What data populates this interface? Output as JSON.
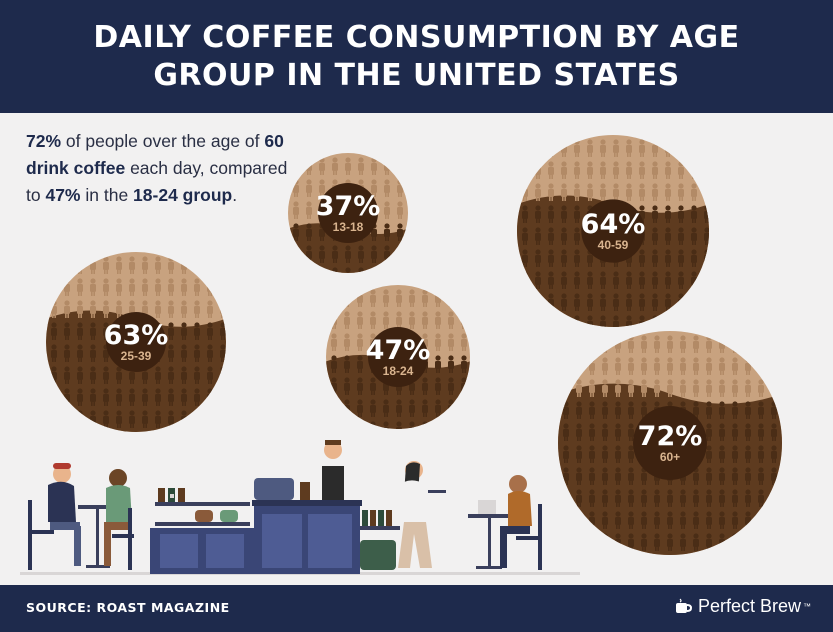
{
  "title": "DAILY COFFEE CONSUMPTION BY AGE GROUP IN THE UNITED STATES",
  "summary": {
    "p1": "72%",
    "p2": " of people over the age of ",
    "p3": "60 drink coffee",
    "p4": " each day, compared to ",
    "p5": "47%",
    "p6": " in the ",
    "p7": "18-24 group",
    "p8": "."
  },
  "footer": {
    "source": "SOURCE: ROAST MAGAZINE",
    "brand": "Perfect Brew",
    "trademark": "™"
  },
  "colors": {
    "header": "#1e2a4c",
    "filled": "#5e3b1f",
    "empty": "#c8a27f",
    "label_circle": "#3d2210",
    "label_text": "#ffffff",
    "age_text": "#d9b48f"
  },
  "chart_data": {
    "type": "bubble",
    "unit": "%",
    "categories": [
      "13-18",
      "18-24",
      "25-39",
      "40-59",
      "60+"
    ],
    "values": [
      37,
      47,
      63,
      64,
      72
    ],
    "labels": [
      "37%",
      "47%",
      "63%",
      "64%",
      "72%"
    ]
  }
}
